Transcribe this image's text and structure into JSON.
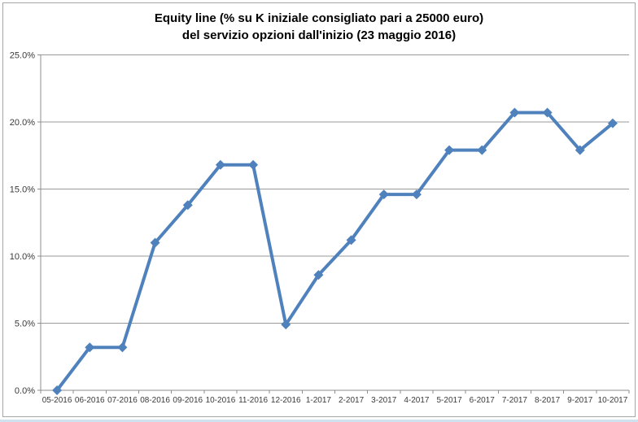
{
  "chart_data": {
    "type": "line",
    "title_line1": "Equity line (% su K iniziale consigliato pari a 25000 euro)",
    "title_line2": "del servizio opzioni dall'inizio (23 maggio 2016)",
    "categories": [
      "05-2016",
      "06-2016",
      "07-2016",
      "08-2016",
      "09-2016",
      "10-2016",
      "11-2016",
      "12-2016",
      "1-2017",
      "2-2017",
      "3-2017",
      "4-2017",
      "5-2017",
      "6-2017",
      "7-2017",
      "8-2017",
      "9-2017",
      "10-2017"
    ],
    "series": [
      {
        "name": "equity-line",
        "values": [
          0.0,
          3.2,
          3.2,
          11.0,
          13.8,
          16.8,
          16.8,
          4.9,
          8.6,
          11.2,
          14.6,
          14.6,
          17.9,
          17.9,
          20.7,
          20.7,
          17.9,
          19.9
        ]
      }
    ],
    "ylim": [
      0,
      25
    ],
    "yticks": [
      0,
      5,
      10,
      15,
      20,
      25
    ],
    "ytick_labels": [
      "0.0%",
      "5.0%",
      "10.0%",
      "15.0%",
      "20.0%",
      "25.0%"
    ],
    "xlabel": "",
    "ylabel": "",
    "grid": true,
    "legend": "none",
    "marker": "diamond",
    "colors": {
      "line": "#4F81BD",
      "gridline": "#9a9a9a",
      "axis": "#8c8c8c",
      "tick_label": "#3a3a3a",
      "chart_border": "#a6a6a6",
      "footer_strip": "#cfe2ee",
      "background": "#ffffff"
    }
  }
}
